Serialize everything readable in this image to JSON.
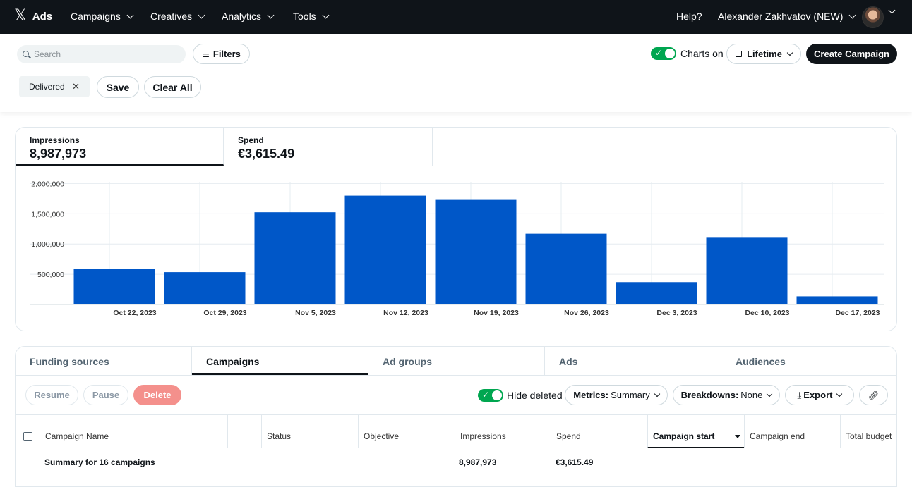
{
  "nav": {
    "logo_x": "𝕏",
    "logo_text": "Ads",
    "menu": [
      {
        "label": "Campaigns"
      },
      {
        "label": "Creatives"
      },
      {
        "label": "Analytics"
      },
      {
        "label": "Tools"
      }
    ],
    "help": "Help?",
    "account": "Alexander Zakhvatov (NEW)"
  },
  "toolbar": {
    "search_placeholder": "Search",
    "filters_label": "Filters",
    "charts_label": "Charts on",
    "charts_on": true,
    "lifetime_label": "Lifetime",
    "create_label": "Create Campaign",
    "chip_label": "Delivered",
    "chip_close": "✕",
    "save_label": "Save",
    "clear_label": "Clear All"
  },
  "metrics": [
    {
      "label": "Impressions",
      "value": "8,987,973"
    },
    {
      "label": "Spend",
      "value": "€3,615.49"
    }
  ],
  "colors": {
    "bar": "#0057c8",
    "toggle_on": "#00a650",
    "delete": "#f4908c"
  },
  "chart_data": {
    "type": "bar",
    "categories": [
      "Oct 22, 2023",
      "Oct 29, 2023",
      "Nov 5, 2023",
      "Nov 12, 2023",
      "Nov 19, 2023",
      "Nov 26, 2023",
      "Dec 3, 2023",
      "Dec 10, 2023",
      "Dec 17, 2023"
    ],
    "values": [
      590000,
      535000,
      1525000,
      1800000,
      1730000,
      1170000,
      370000,
      1115000,
      135000
    ],
    "yticks": [
      {
        "value": 500000,
        "label": "500,000"
      },
      {
        "value": 1000000,
        "label": "1,000,000"
      },
      {
        "value": 1500000,
        "label": "1,500,000"
      },
      {
        "value": 2000000,
        "label": "2,000,000"
      }
    ],
    "ylim": [
      0,
      2000000
    ],
    "grid": true
  },
  "tabs": [
    {
      "label": "Funding sources"
    },
    {
      "label": "Campaigns"
    },
    {
      "label": "Ad groups"
    },
    {
      "label": "Ads"
    },
    {
      "label": "Audiences"
    }
  ],
  "actions": {
    "resume": "Resume",
    "pause": "Pause",
    "delete": "Delete",
    "hide_deleted": "Hide deleted",
    "metrics_prefix": "Metrics:",
    "metrics_value": "Summary",
    "breakdowns_prefix": "Breakdowns:",
    "breakdowns_value": "None",
    "export_label": "Export"
  },
  "table": {
    "columns": [
      "Campaign Name",
      "Status",
      "Objective",
      "Impressions",
      "Spend",
      "Campaign start",
      "Campaign end",
      "Total budget"
    ],
    "summary": {
      "name": "Summary for 16 campaigns",
      "impressions": "8,987,973",
      "spend": "€3,615.49"
    }
  }
}
